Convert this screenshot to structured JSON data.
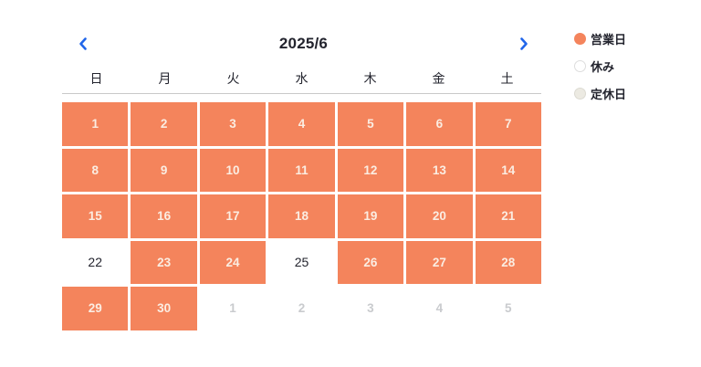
{
  "calendar": {
    "title": "2025/6",
    "weekdays": [
      "日",
      "月",
      "火",
      "水",
      "木",
      "金",
      "土"
    ],
    "cells": [
      {
        "day": "1",
        "state": "open"
      },
      {
        "day": "2",
        "state": "open"
      },
      {
        "day": "3",
        "state": "open"
      },
      {
        "day": "4",
        "state": "open"
      },
      {
        "day": "5",
        "state": "open"
      },
      {
        "day": "6",
        "state": "open"
      },
      {
        "day": "7",
        "state": "open"
      },
      {
        "day": "8",
        "state": "open"
      },
      {
        "day": "9",
        "state": "open"
      },
      {
        "day": "10",
        "state": "open"
      },
      {
        "day": "11",
        "state": "open"
      },
      {
        "day": "12",
        "state": "open"
      },
      {
        "day": "13",
        "state": "open"
      },
      {
        "day": "14",
        "state": "open"
      },
      {
        "day": "15",
        "state": "open"
      },
      {
        "day": "16",
        "state": "open"
      },
      {
        "day": "17",
        "state": "open"
      },
      {
        "day": "18",
        "state": "open"
      },
      {
        "day": "19",
        "state": "open"
      },
      {
        "day": "20",
        "state": "open"
      },
      {
        "day": "21",
        "state": "open"
      },
      {
        "day": "22",
        "state": "closed"
      },
      {
        "day": "23",
        "state": "open"
      },
      {
        "day": "24",
        "state": "open"
      },
      {
        "day": "25",
        "state": "closed"
      },
      {
        "day": "26",
        "state": "open"
      },
      {
        "day": "27",
        "state": "open"
      },
      {
        "day": "28",
        "state": "open"
      },
      {
        "day": "29",
        "state": "open"
      },
      {
        "day": "30",
        "state": "open"
      },
      {
        "day": "1",
        "state": "next"
      },
      {
        "day": "2",
        "state": "next"
      },
      {
        "day": "3",
        "state": "next"
      },
      {
        "day": "4",
        "state": "next"
      },
      {
        "day": "5",
        "state": "next"
      }
    ]
  },
  "legend": {
    "items": [
      {
        "label": "営業日",
        "type": "open"
      },
      {
        "label": "休み",
        "type": "closed"
      },
      {
        "label": "定休日",
        "type": "regular"
      }
    ]
  },
  "colors": {
    "orange": "#F4845C",
    "blue": "#2166EA",
    "text-dark": "#23242E",
    "cell-num": "#FBEDE2",
    "muted": "#C9CBCE",
    "line": "#C9C9C9",
    "dot-border": "#DDDDDD",
    "holiday-fill": "#ECEAE2",
    "holiday-border": "#DCDAD2"
  }
}
